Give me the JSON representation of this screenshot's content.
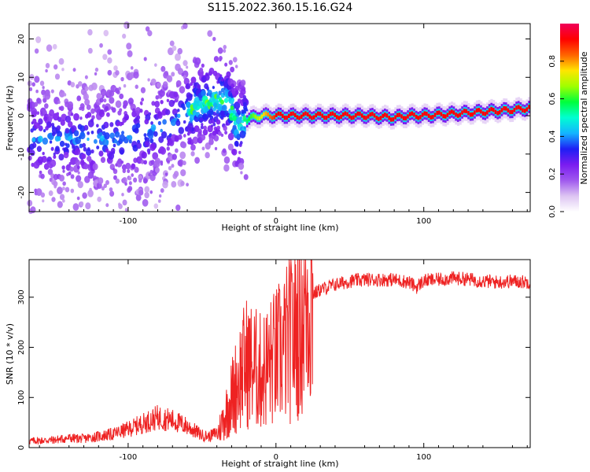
{
  "title": "S115.2022.360.15.16.G24",
  "colors": {
    "line": "#ee2222",
    "axis": "#000000",
    "background": "#ffffff"
  },
  "chart_data": [
    {
      "type": "heatmap",
      "xlabel": "Height of straight line (km)",
      "ylabel": "Frequency (Hz)",
      "xlim": [
        -167,
        172
      ],
      "ylim": [
        -25,
        24
      ],
      "xticks": [
        -100,
        0,
        100
      ],
      "xtick_labels": [
        "-100",
        "0",
        "100"
      ],
      "yticks": [
        -20,
        -10,
        0,
        10,
        20
      ],
      "ytick_labels": [
        "-20",
        "-10",
        "0",
        "10",
        "20"
      ],
      "colorbar": {
        "label": "Normalized spectral amplitude",
        "range": [
          0,
          1
        ],
        "ticks": [
          0.0,
          0.2,
          0.4,
          0.6,
          0.8
        ],
        "tick_labels": [
          "0.0",
          "0.2",
          "0.4",
          "0.6",
          "0.8"
        ],
        "colormap": [
          "#ffffff",
          "#ddc4f2",
          "#9f58ee",
          "#7a1cf0",
          "#1e1ef5",
          "#14b4ff",
          "#00ffd2",
          "#00ff3c",
          "#a0ff00",
          "#ffe600",
          "#ff6400",
          "#ff0000",
          "#f0005a"
        ]
      },
      "ridge": {
        "x": [
          -100,
          -85,
          -70,
          -60,
          -50,
          -40,
          -32,
          -26,
          -20,
          -10,
          0,
          20,
          40,
          60,
          80,
          90,
          100,
          120,
          140,
          160,
          172
        ],
        "freq": [
          -6,
          -4,
          -2,
          1,
          3,
          4,
          4,
          -3,
          -1,
          0,
          0,
          0,
          0,
          0,
          -0.5,
          0,
          0,
          0.5,
          1,
          1.5,
          2
        ]
      }
    },
    {
      "type": "line",
      "xlabel": "Height of straight line (km)",
      "ylabel": "SNR (10 * v/v)",
      "xlim": [
        -167,
        172
      ],
      "ylim": [
        0,
        375
      ],
      "xticks": [
        -100,
        0,
        100
      ],
      "xtick_labels": [
        "-100",
        "0",
        "100"
      ],
      "yticks": [
        0,
        100,
        200,
        300
      ],
      "ytick_labels": [
        "0",
        "100",
        "200",
        "300"
      ],
      "series": [
        {
          "x": [
            -167,
            -150,
            -140,
            -130,
            -120,
            -110,
            -100,
            -90,
            -80,
            -70,
            -60,
            -50,
            -45,
            -40,
            -35,
            -30,
            -25,
            -20,
            -15,
            -10,
            -5,
            0,
            5,
            10,
            15,
            20,
            25,
            30,
            40,
            50,
            60,
            70,
            80,
            90,
            95,
            100,
            110,
            120,
            130,
            140,
            150,
            160,
            172
          ],
          "y": [
            10,
            12,
            15,
            14,
            18,
            22,
            30,
            40,
            50,
            45,
            35,
            20,
            18,
            25,
            60,
            100,
            140,
            170,
            160,
            150,
            165,
            180,
            195,
            220,
            250,
            290,
            305,
            315,
            325,
            332,
            335,
            335,
            335,
            330,
            320,
            333,
            335,
            338,
            336,
            332,
            330,
            332,
            330
          ]
        }
      ]
    }
  ]
}
